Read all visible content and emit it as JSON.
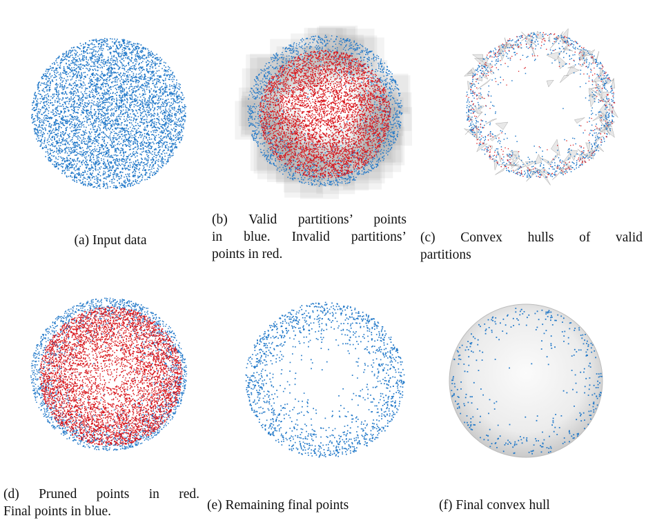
{
  "figure": {
    "panels": [
      {
        "caption_lines": [
          "(a) Input data"
        ]
      },
      {
        "caption_lines": [
          "(b) Valid partitions’ points",
          "in blue. Invalid partitions’",
          "points in red."
        ]
      },
      {
        "caption_lines": [
          "(c) Convex hulls of valid",
          "partitions"
        ]
      },
      {
        "caption_lines": [
          "(d) Pruned points in red.",
          "Final points in blue."
        ]
      },
      {
        "caption_lines": [
          "(e) Remaining final points"
        ]
      },
      {
        "caption_lines": [
          "(f) Final convex hull"
        ]
      }
    ]
  }
}
